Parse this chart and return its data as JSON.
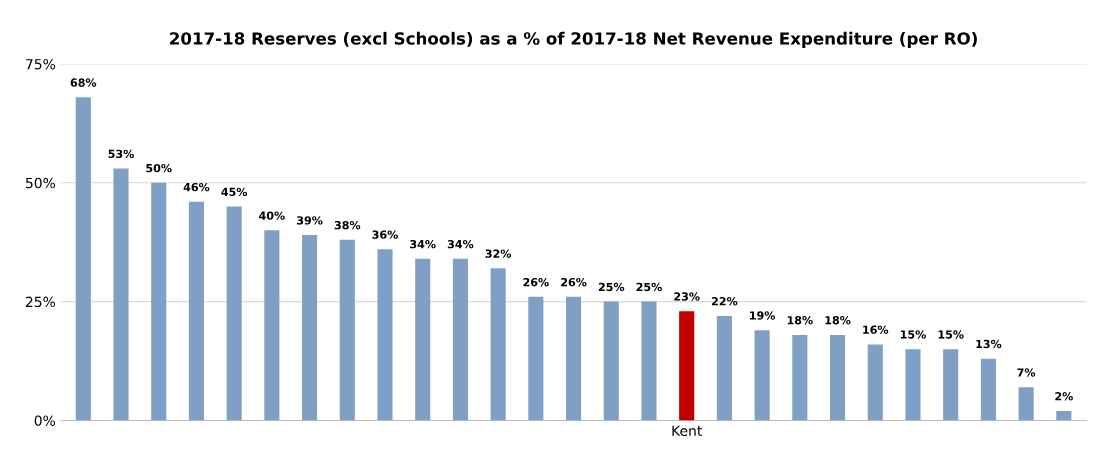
{
  "chart_data": {
    "type": "bar",
    "title": "2017-18 Reserves (excl Schools) as a % of 2017-18 Net Revenue Expenditure (per RO)",
    "categories": [
      null,
      null,
      null,
      null,
      null,
      null,
      null,
      null,
      null,
      null,
      null,
      null,
      null,
      null,
      null,
      null,
      "Kent",
      null,
      null,
      null,
      null,
      null,
      null,
      null,
      null,
      null,
      null
    ],
    "values": [
      68,
      53,
      50,
      46,
      45,
      40,
      39,
      38,
      36,
      34,
      34,
      32,
      26,
      26,
      25,
      25,
      23,
      22,
      19,
      18,
      18,
      16,
      15,
      15,
      13,
      7,
      2
    ],
    "colors": [
      "#7f9fc4",
      "#7f9fc4",
      "#7f9fc4",
      "#7f9fc4",
      "#7f9fc4",
      "#7f9fc4",
      "#7f9fc4",
      "#7f9fc4",
      "#7f9fc4",
      "#7f9fc4",
      "#7f9fc4",
      "#7f9fc4",
      "#7f9fc4",
      "#7f9fc4",
      "#7f9fc4",
      "#7f9fc4",
      "#c00000",
      "#7f9fc4",
      "#7f9fc4",
      "#7f9fc4",
      "#7f9fc4",
      "#7f9fc4",
      "#7f9fc4",
      "#7f9fc4",
      "#7f9fc4",
      "#7f9fc4",
      "#7f9fc4"
    ],
    "value_labels": [
      "68%",
      "53%",
      "50%",
      "46%",
      "45%",
      "40%",
      "39%",
      "38%",
      "36%",
      "34%",
      "34%",
      "32%",
      "26%",
      "26%",
      "25%",
      "25%",
      "23%",
      "22%",
      "19%",
      "18%",
      "18%",
      "16%",
      "15%",
      "15%",
      "13%",
      "7%",
      "2%"
    ],
    "ylim": [
      0,
      75
    ],
    "yticks": [
      {
        "value": 0,
        "label": "0%"
      },
      {
        "value": 25,
        "label": "25%"
      },
      {
        "value": 50,
        "label": "50%"
      },
      {
        "value": 75,
        "label": "75%"
      }
    ],
    "grid": "y",
    "legend": false
  }
}
